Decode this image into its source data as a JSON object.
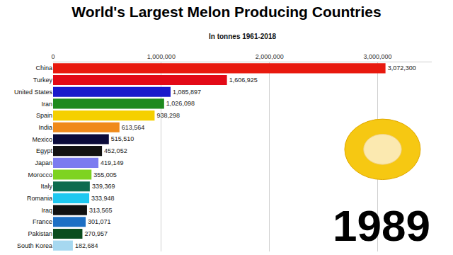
{
  "chart_data": {
    "type": "bar",
    "orientation": "horizontal",
    "title": "World's Largest Melon Producing Countries",
    "subtitle": "In tonnes 1961-2018",
    "annotations": [
      "1989"
    ],
    "categories": [
      "China",
      "Turkey",
      "United States",
      "Iran",
      "Spain",
      "India",
      "Mexico",
      "Egypt",
      "Japan",
      "Morocco",
      "Italy",
      "Romania",
      "Iraq",
      "France",
      "Pakistan",
      "South Korea"
    ],
    "values": [
      3072300,
      1606925,
      1085897,
      1026098,
      938298,
      613564,
      515510,
      452052,
      419149,
      355005,
      339369,
      333948,
      313565,
      301071,
      270957,
      182684
    ],
    "value_labels": [
      "3,072,300",
      "1,606,925",
      "1,085,897",
      "1,026,098",
      "938,298",
      "613,564",
      "515,510",
      "452,052",
      "419,149",
      "355,005",
      "339,369",
      "333,948",
      "313,565",
      "301,071",
      "270,957",
      "182,684"
    ],
    "colors": [
      "#e8190e",
      "#e30a17",
      "#1a1acb",
      "#1e8a1e",
      "#f5d000",
      "#f08a1a",
      "#0b0b3a",
      "#111111",
      "#7b7bf0",
      "#7ed321",
      "#0d6b4f",
      "#1ec8f0",
      "#111111",
      "#1c6fc4",
      "#0b4d1e",
      "#a6d8f0"
    ],
    "xlim": [
      0,
      3500000
    ],
    "xticks": [
      0,
      {
        "value": 1000000,
        "label": "1,000,000"
      },
      {
        "value": 2000000,
        "label": "2,000,000"
      },
      {
        "value": 3000000,
        "label": "3,000,000"
      }
    ],
    "grid": true,
    "data_labels": true
  }
}
